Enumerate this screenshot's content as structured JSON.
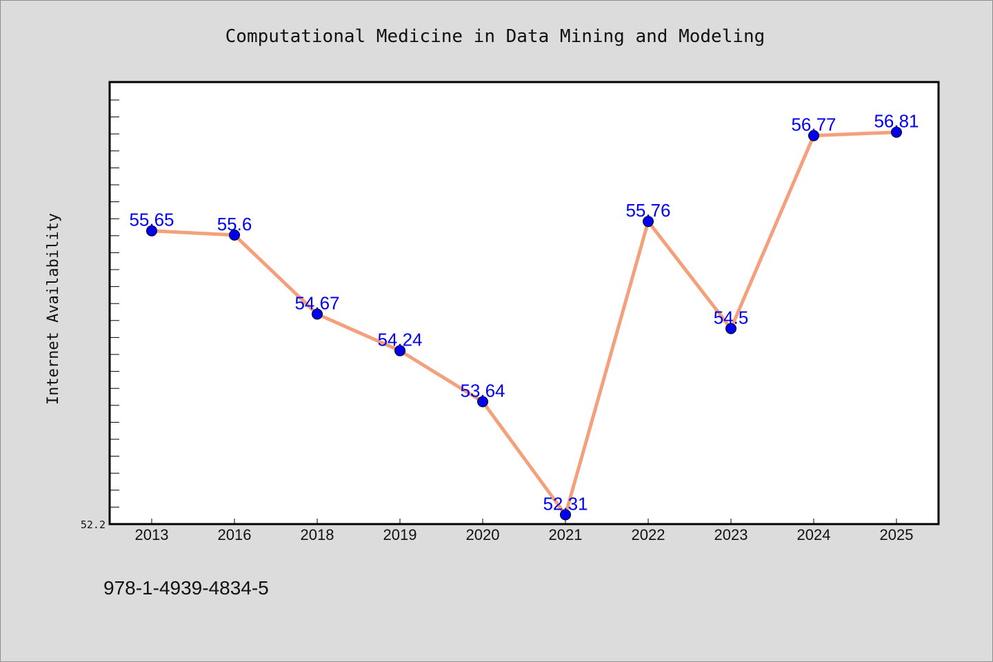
{
  "chart_data": {
    "type": "line",
    "title": "Computational Medicine in Data Mining and Modeling",
    "xlabel": "",
    "ylabel": "Internet Availability",
    "categories": [
      "2013",
      "2016",
      "2018",
      "2019",
      "2020",
      "2021",
      "2022",
      "2023",
      "2024",
      "2025"
    ],
    "series": [
      {
        "values": [
          55.65,
          55.6,
          54.67,
          54.24,
          53.64,
          52.31,
          55.76,
          54.5,
          56.77,
          56.81
        ]
      }
    ],
    "data_labels": [
      "55.65",
      "55.6",
      "54.67",
      "54.24",
      "53.64",
      "52.31",
      "55.76",
      "54.5",
      "56.77",
      "56.81"
    ],
    "ylim": [
      52.2,
      57.4
    ],
    "ytick_labels": [
      "52.2"
    ],
    "grid": false,
    "legend": "none",
    "colors": {
      "line": "#f4a07c",
      "marker": "#0000ee",
      "data_label": "#0000ee",
      "plot_background": "#ffffff",
      "page_background": "#dcdcdc"
    }
  },
  "footer": {
    "isbn": "978-1-4939-4834-5"
  }
}
